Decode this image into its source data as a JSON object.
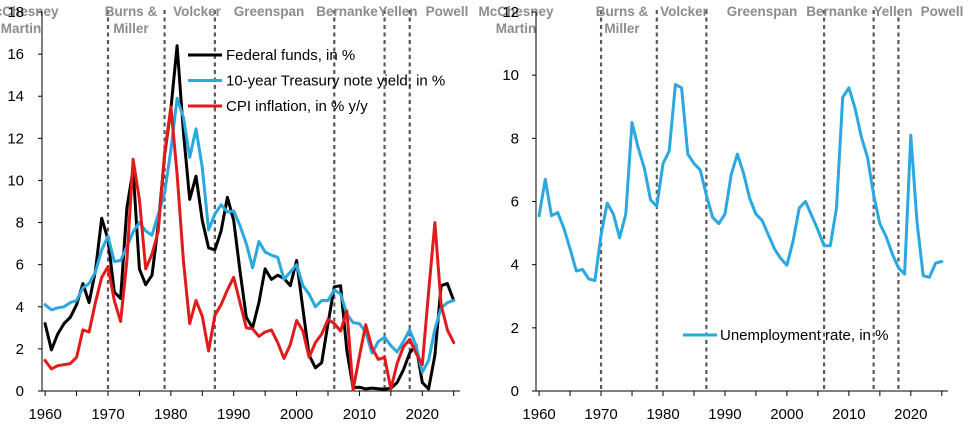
{
  "chart_data": [
    {
      "type": "line",
      "title": "",
      "xlabel": "",
      "ylabel": "",
      "xlim": [
        1959.5,
        2026
      ],
      "ylim": [
        0,
        18
      ],
      "xticks": [
        1960,
        1970,
        1980,
        1990,
        2000,
        2010,
        2020
      ],
      "yticks": [
        0,
        2,
        4,
        6,
        8,
        10,
        12,
        14,
        16,
        18
      ],
      "legend_position": "top-right",
      "x": [
        1960,
        1961,
        1962,
        1963,
        1964,
        1965,
        1966,
        1967,
        1968,
        1969,
        1970,
        1971,
        1972,
        1973,
        1974,
        1975,
        1976,
        1977,
        1978,
        1979,
        1980,
        1981,
        1982,
        1983,
        1984,
        1985,
        1986,
        1987,
        1988,
        1989,
        1990,
        1991,
        1992,
        1993,
        1994,
        1995,
        1996,
        1997,
        1998,
        1999,
        2000,
        2001,
        2002,
        2003,
        2004,
        2005,
        2006,
        2007,
        2008,
        2009,
        2010,
        2011,
        2012,
        2013,
        2014,
        2015,
        2016,
        2017,
        2018,
        2019,
        2020,
        2021,
        2022,
        2023,
        2024,
        2025
      ],
      "series": [
        {
          "name": "Federal funds, in %",
          "color": "#000000",
          "values": [
            3.2,
            1.95,
            2.7,
            3.2,
            3.5,
            4.1,
            5.1,
            4.2,
            5.7,
            8.2,
            7.2,
            4.7,
            4.4,
            8.7,
            10.5,
            5.8,
            5.05,
            5.5,
            7.9,
            11.2,
            13.4,
            16.4,
            12.3,
            9.1,
            10.2,
            8.1,
            6.8,
            6.7,
            7.6,
            9.2,
            8.1,
            5.7,
            3.5,
            3.0,
            4.2,
            5.8,
            5.3,
            5.5,
            5.35,
            5.0,
            6.2,
            3.9,
            1.7,
            1.1,
            1.35,
            3.2,
            4.95,
            5.0,
            1.9,
            0.16,
            0.18,
            0.1,
            0.14,
            0.11,
            0.09,
            0.13,
            0.4,
            1.0,
            1.8,
            2.2,
            0.4,
            0.1,
            1.7,
            5.0,
            5.1,
            4.3
          ]
        },
        {
          "name": "10-year Treasury note yield, in %",
          "color": "#2aa8df",
          "values": [
            4.1,
            3.85,
            3.95,
            4.0,
            4.2,
            4.3,
            4.9,
            5.1,
            5.65,
            6.7,
            7.35,
            6.15,
            6.2,
            6.85,
            7.55,
            8.0,
            7.6,
            7.4,
            8.4,
            9.4,
            11.45,
            13.9,
            13.0,
            11.1,
            12.45,
            10.6,
            7.65,
            8.4,
            8.85,
            8.5,
            8.55,
            7.85,
            7.0,
            5.85,
            7.1,
            6.6,
            6.45,
            6.35,
            5.3,
            5.65,
            6.0,
            5.0,
            4.6,
            4.0,
            4.3,
            4.3,
            4.8,
            4.6,
            3.65,
            3.25,
            3.2,
            2.8,
            1.8,
            2.35,
            2.55,
            2.15,
            1.85,
            2.35,
            2.9,
            2.15,
            0.9,
            1.45,
            2.95,
            3.95,
            4.2,
            4.3
          ]
        },
        {
          "name": "CPI inflation, in % y/y",
          "color": "#e31a1c",
          "values": [
            1.45,
            1.05,
            1.2,
            1.25,
            1.3,
            1.6,
            2.9,
            2.8,
            4.2,
            5.4,
            5.9,
            4.3,
            3.3,
            6.2,
            11.0,
            9.1,
            5.8,
            6.5,
            7.6,
            11.3,
            13.5,
            10.3,
            6.2,
            3.2,
            4.3,
            3.55,
            1.9,
            3.6,
            4.1,
            4.8,
            5.4,
            4.2,
            3.0,
            2.95,
            2.6,
            2.8,
            2.9,
            2.3,
            1.55,
            2.2,
            3.35,
            2.85,
            1.6,
            2.3,
            2.7,
            3.4,
            3.2,
            2.85,
            3.8,
            0.05,
            1.65,
            3.15,
            2.05,
            1.5,
            1.6,
            0.1,
            1.3,
            2.1,
            2.45,
            1.8,
            1.25,
            4.7,
            8.0,
            4.1,
            2.9,
            2.3
          ]
        }
      ],
      "fed_chairs": [
        {
          "name": "McChesney Martin",
          "line1": "McChesney",
          "line2": "Martin"
        },
        {
          "name": "Burns & Miller",
          "line1": "Burns &",
          "line2": "Miller"
        },
        {
          "name": "Volcker",
          "line1": "Volcker",
          "line2": ""
        },
        {
          "name": "Greenspan",
          "line1": "Greenspan",
          "line2": ""
        },
        {
          "name": "Bernanke",
          "line1": "Bernanke",
          "line2": ""
        },
        {
          "name": "Yellen",
          "line1": "Yellen",
          "line2": ""
        },
        {
          "name": "Powell",
          "line1": "Powell",
          "line2": ""
        }
      ],
      "term_boundaries": [
        1970,
        1979,
        1987,
        2006,
        2014,
        2018
      ]
    },
    {
      "type": "line",
      "title": "",
      "xlabel": "",
      "ylabel": "",
      "xlim": [
        1959.5,
        2026
      ],
      "ylim": [
        0,
        12
      ],
      "xticks": [
        1960,
        1970,
        1980,
        1990,
        2000,
        2010,
        2020
      ],
      "yticks": [
        0,
        2,
        4,
        6,
        8,
        10,
        12
      ],
      "legend_position": "bottom-center",
      "x": [
        1960,
        1961,
        1962,
        1963,
        1964,
        1965,
        1966,
        1967,
        1968,
        1969,
        1970,
        1971,
        1972,
        1973,
        1974,
        1975,
        1976,
        1977,
        1978,
        1979,
        1980,
        1981,
        1982,
        1983,
        1984,
        1985,
        1986,
        1987,
        1988,
        1989,
        1990,
        1991,
        1992,
        1993,
        1994,
        1995,
        1996,
        1997,
        1998,
        1999,
        2000,
        2001,
        2002,
        2003,
        2004,
        2005,
        2006,
        2007,
        2008,
        2009,
        2010,
        2011,
        2012,
        2013,
        2014,
        2015,
        2016,
        2017,
        2018,
        2019,
        2020,
        2021,
        2022,
        2023,
        2024,
        2025
      ],
      "series": [
        {
          "name": "Unemployment rate, in %",
          "color": "#2aa8df",
          "values": [
            5.55,
            6.7,
            5.55,
            5.65,
            5.15,
            4.5,
            3.8,
            3.85,
            3.55,
            3.5,
            4.95,
            5.95,
            5.6,
            4.85,
            5.6,
            8.5,
            7.7,
            7.05,
            6.05,
            5.85,
            7.2,
            7.6,
            9.7,
            9.6,
            7.5,
            7.2,
            7.0,
            6.2,
            5.5,
            5.3,
            5.6,
            6.85,
            7.5,
            6.9,
            6.1,
            5.6,
            5.4,
            4.95,
            4.5,
            4.2,
            3.98,
            4.75,
            5.8,
            6.0,
            5.55,
            5.1,
            4.6,
            4.6,
            5.8,
            9.3,
            9.6,
            8.95,
            8.05,
            7.4,
            6.2,
            5.3,
            4.9,
            4.35,
            3.9,
            3.7,
            8.1,
            5.35,
            3.65,
            3.6,
            4.05,
            4.1
          ]
        }
      ],
      "fed_chairs": [
        {
          "name": "McChesney Martin",
          "line1": "McChesney",
          "line2": "Martin"
        },
        {
          "name": "Burns & Miller",
          "line1": "Burns &",
          "line2": "Miller"
        },
        {
          "name": "Volcker",
          "line1": "Volcker",
          "line2": ""
        },
        {
          "name": "Greenspan",
          "line1": "Greenspan",
          "line2": ""
        },
        {
          "name": "Bernanke",
          "line1": "Bernanke",
          "line2": ""
        },
        {
          "name": "Yellen",
          "line1": "Yellen",
          "line2": ""
        },
        {
          "name": "Powell",
          "line1": "Powell",
          "line2": ""
        }
      ],
      "term_boundaries": [
        1970,
        1979,
        1987,
        2006,
        2014,
        2018
      ]
    }
  ]
}
